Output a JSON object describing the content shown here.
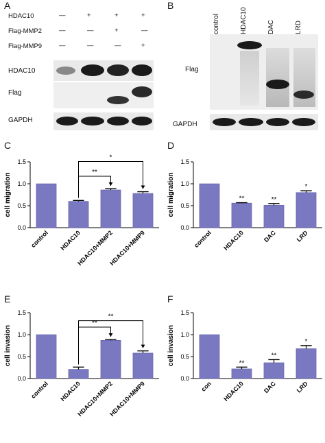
{
  "panel_letters": {
    "a": "A",
    "b": "B",
    "c": "C",
    "d": "D",
    "e": "E",
    "f": "F"
  },
  "panel_a": {
    "rows": [
      {
        "label": "HDAC10",
        "marks": [
          "—",
          "+",
          "+",
          "+"
        ]
      },
      {
        "label": "Flag-MMP2",
        "marks": [
          "—",
          "—",
          "+",
          "—"
        ]
      },
      {
        "label": "Flag-MMP9",
        "marks": [
          "—",
          "—",
          "—",
          "+"
        ]
      }
    ],
    "blot_labels": {
      "hdac10": "HDAC10",
      "flag": "Flag",
      "gapdh": "GAPDH"
    }
  },
  "panel_b": {
    "lanes": [
      "control",
      "HDAC10",
      "DAC",
      "LRD"
    ],
    "blot_labels": {
      "flag": "Flag",
      "gapdh": "GAPDH"
    }
  },
  "colors": {
    "bar": "#7a78c0",
    "bar_edge": "#5e5ca6"
  },
  "chart_data": [
    {
      "id": "C",
      "type": "bar",
      "categories": [
        "control",
        "HDAC10",
        "HDAC10+MMP2",
        "HDAC10+MMP9"
      ],
      "values": [
        1.0,
        0.6,
        0.86,
        0.78
      ],
      "errors": [
        0,
        0.02,
        0.03,
        0.04
      ],
      "ylabel": "cell migration",
      "ylim": [
        0,
        1.5
      ],
      "yticks": [
        "0.0",
        "0.5",
        "1.0",
        "1.5"
      ],
      "stars": [
        "",
        "",
        "",
        ""
      ],
      "brackets": [
        {
          "from": 1,
          "to": 2,
          "label": "**"
        },
        {
          "from": 1,
          "to": 3,
          "label": "*"
        }
      ]
    },
    {
      "id": "D",
      "type": "bar",
      "categories": [
        "control",
        "HDAC10",
        "DAC",
        "LRD"
      ],
      "values": [
        1.0,
        0.56,
        0.51,
        0.8
      ],
      "errors": [
        0,
        0.01,
        0.04,
        0.04
      ],
      "ylabel": "cell migration",
      "ylim": [
        0,
        1.5
      ],
      "yticks": [
        "0.0",
        "0.5",
        "1.0",
        "1.5"
      ],
      "stars": [
        "",
        "**",
        "**",
        "*"
      ],
      "brackets": []
    },
    {
      "id": "E",
      "type": "bar",
      "categories": [
        "control",
        "HDAC10",
        "HDAC10+MMP2",
        "HDAC10+MMP9"
      ],
      "values": [
        1.0,
        0.21,
        0.87,
        0.58
      ],
      "errors": [
        0,
        0.05,
        0.02,
        0.05
      ],
      "ylabel": "cell invasion",
      "ylim": [
        0,
        1.5
      ],
      "yticks": [
        "0.0",
        "0.5",
        "1.0",
        "1.5"
      ],
      "stars": [
        "",
        "",
        "",
        ""
      ],
      "brackets": [
        {
          "from": 1,
          "to": 2,
          "label": "**"
        },
        {
          "from": 1,
          "to": 3,
          "label": "**"
        }
      ]
    },
    {
      "id": "F",
      "type": "bar",
      "categories": [
        "con",
        "HDAC10",
        "DAC",
        "LRD"
      ],
      "values": [
        1.0,
        0.22,
        0.36,
        0.68
      ],
      "errors": [
        0,
        0.04,
        0.07,
        0.07
      ],
      "ylabel": "cell invasion",
      "ylim": [
        0,
        1.5
      ],
      "yticks": [
        "0.0",
        "0.5",
        "1.0",
        "1.5"
      ],
      "stars": [
        "",
        "**",
        "**",
        "*"
      ],
      "brackets": []
    }
  ]
}
